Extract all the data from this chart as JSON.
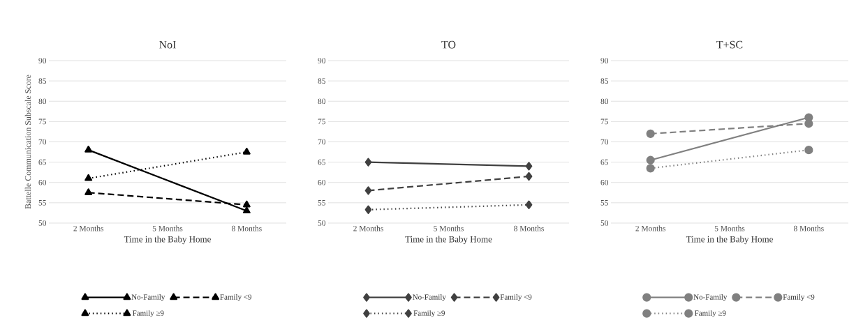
{
  "chart_data": [
    {
      "type": "line",
      "title": "NoI",
      "xlabel": "Time in the Baby Home",
      "ylabel": "Battelle Communication Subscale Score",
      "categories": [
        "2 Months",
        "5 Months",
        "8 Months"
      ],
      "ylim": [
        50,
        90
      ],
      "yticks": [
        50,
        55,
        60,
        65,
        70,
        75,
        80,
        85,
        90
      ],
      "grid": "y",
      "legend": "bottom",
      "marker": "triangle",
      "series": [
        {
          "name": "No-Family",
          "color": "#000000",
          "line_style": "solid",
          "values": [
            68,
            null,
            53
          ]
        },
        {
          "name": "Family <9",
          "color": "#000000",
          "line_style": "dashed",
          "values": [
            57.5,
            null,
            54.5
          ]
        },
        {
          "name": "Family ≥9",
          "color": "#000000",
          "line_style": "dotted",
          "values": [
            61,
            null,
            67.5
          ]
        }
      ]
    },
    {
      "type": "line",
      "title": "TO",
      "xlabel": "Time in the Baby Home",
      "categories": [
        "2 Months",
        "5 Months",
        "8 Months"
      ],
      "ylim": [
        50,
        90
      ],
      "yticks": [
        50,
        55,
        60,
        65,
        70,
        75,
        80,
        85,
        90
      ],
      "grid": "y",
      "legend": "bottom",
      "marker": "diamond",
      "series": [
        {
          "name": "No-Family",
          "color": "#404040",
          "line_style": "solid",
          "values": [
            65,
            null,
            64
          ]
        },
        {
          "name": "Family <9",
          "color": "#404040",
          "line_style": "dashed",
          "values": [
            58,
            null,
            61.5
          ]
        },
        {
          "name": "Family ≥9",
          "color": "#404040",
          "line_style": "dotted",
          "values": [
            53.3,
            null,
            54.5
          ]
        }
      ]
    },
    {
      "type": "line",
      "title": "T+SC",
      "xlabel": "Time in the Baby Home",
      "categories": [
        "2 Months",
        "5 Months",
        "8 Months"
      ],
      "ylim": [
        50,
        90
      ],
      "yticks": [
        50,
        55,
        60,
        65,
        70,
        75,
        80,
        85,
        90
      ],
      "grid": "y",
      "legend": "bottom",
      "marker": "circle",
      "series": [
        {
          "name": "No-Family",
          "color": "#808080",
          "line_style": "solid",
          "values": [
            65.5,
            null,
            76
          ]
        },
        {
          "name": "Family <9",
          "color": "#808080",
          "line_style": "dashed",
          "values": [
            72,
            null,
            74.5
          ]
        },
        {
          "name": "Family ≥9",
          "color": "#808080",
          "line_style": "dotted",
          "values": [
            63.5,
            null,
            68
          ]
        }
      ]
    }
  ]
}
